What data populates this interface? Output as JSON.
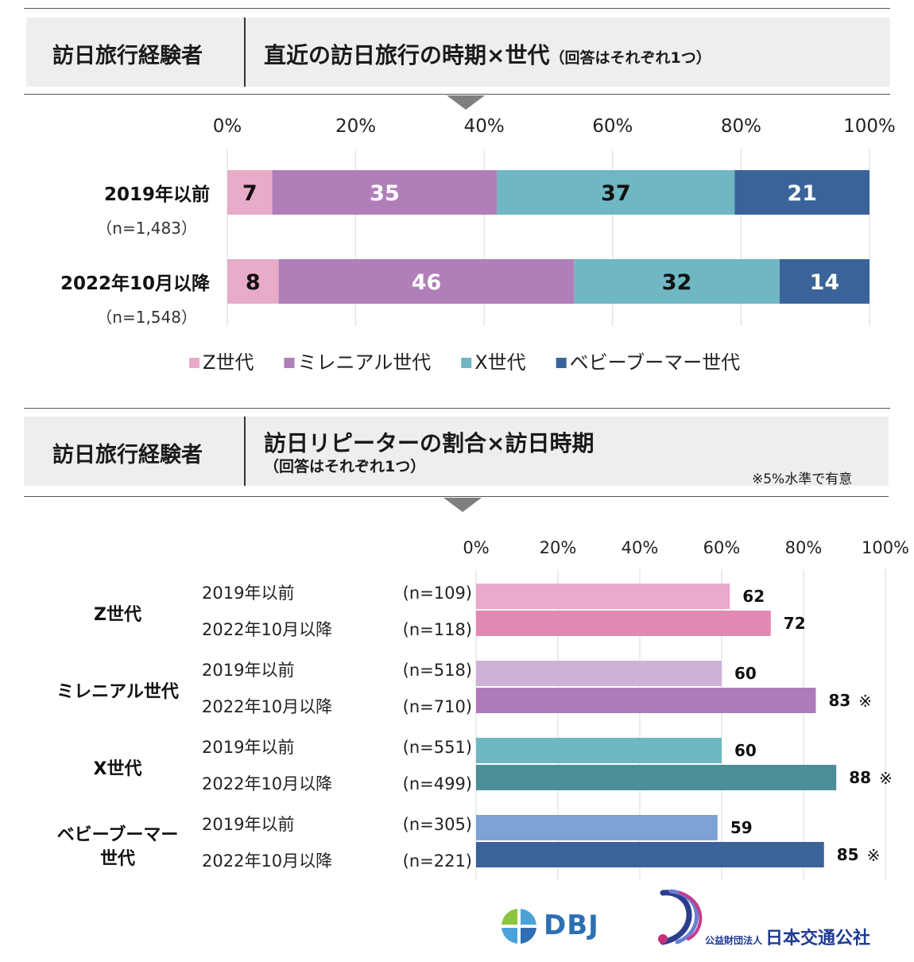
{
  "section1": {
    "header_left": "訪日旅行経験者",
    "header_title": "直近の訪日旅行の時期×世代",
    "header_sub": "（回答はそれぞれ1つ）"
  },
  "section2": {
    "header_left": "訪日旅行経験者",
    "header_title": "訪日リピーターの割合×訪日時期",
    "header_sub": "（回答はそれぞれ1つ）",
    "note": "※5%水準で有意"
  },
  "chart_data": [
    {
      "type": "bar",
      "orientation": "horizontal",
      "stacked": true,
      "categories": [
        "2019年以前",
        "2022年10月以降"
      ],
      "category_sublabels": [
        "（n=1,483）",
        "（n=1,548）"
      ],
      "series": [
        {
          "name": "Z世代",
          "color": "#e8abc8",
          "values": [
            7,
            8
          ]
        },
        {
          "name": "ミレニアル世代",
          "color": "#b07fb9",
          "values": [
            35,
            46
          ]
        },
        {
          "name": "X世代",
          "color": "#6fb7c3",
          "values": [
            37,
            32
          ]
        },
        {
          "name": "ベビーブーマー世代",
          "color": "#3a639a",
          "values": [
            21,
            14
          ]
        }
      ],
      "label_colors": [
        "#111111",
        "#ffffff",
        "#111111",
        "#ffffff"
      ],
      "ticks": [
        "0%",
        "20%",
        "40%",
        "60%",
        "80%",
        "100%"
      ],
      "xlim": [
        0,
        100
      ],
      "grid": true,
      "legend": "bottom"
    },
    {
      "type": "bar",
      "orientation": "horizontal",
      "ticks": [
        "0%",
        "20%",
        "40%",
        "60%",
        "80%",
        "100%"
      ],
      "xlim": [
        0,
        100
      ],
      "grid": true,
      "groups": [
        {
          "name": "Z世代",
          "rows": [
            {
              "period": "2019年以前",
              "n": "(n=109)",
              "value": 62,
              "color": "#e9aacb",
              "mark": ""
            },
            {
              "period": "2022年10月以降",
              "n": "(n=118)",
              "value": 72,
              "color": "#e289b3",
              "mark": ""
            }
          ]
        },
        {
          "name": "ミレニアル世代",
          "rows": [
            {
              "period": "2019年以前",
              "n": "(n=518)",
              "value": 60,
              "color": "#d0b1d6",
              "mark": ""
            },
            {
              "period": "2022年10月以降",
              "n": "(n=710)",
              "value": 83,
              "color": "#ae7ab8",
              "mark": "※"
            }
          ]
        },
        {
          "name": "X世代",
          "rows": [
            {
              "period": "2019年以前",
              "n": "(n=551)",
              "value": 60,
              "color": "#6eb8c3",
              "mark": ""
            },
            {
              "period": "2022年10月以降",
              "n": "(n=499)",
              "value": 88,
              "color": "#4d8d97",
              "mark": "※"
            }
          ]
        },
        {
          "name": "ベビーブーマー世代",
          "rows": [
            {
              "period": "2019年以前",
              "n": "(n=305)",
              "value": 59,
              "color": "#7da3d4",
              "mark": ""
            },
            {
              "period": "2022年10月以降",
              "n": "(n=221)",
              "value": 85,
              "color": "#3b6299",
              "mark": "※"
            }
          ]
        }
      ]
    }
  ],
  "logos": {
    "dbj": "DBJ",
    "jtb_prefix": "公益財団法人",
    "jtb_name": "日本交通公社"
  }
}
